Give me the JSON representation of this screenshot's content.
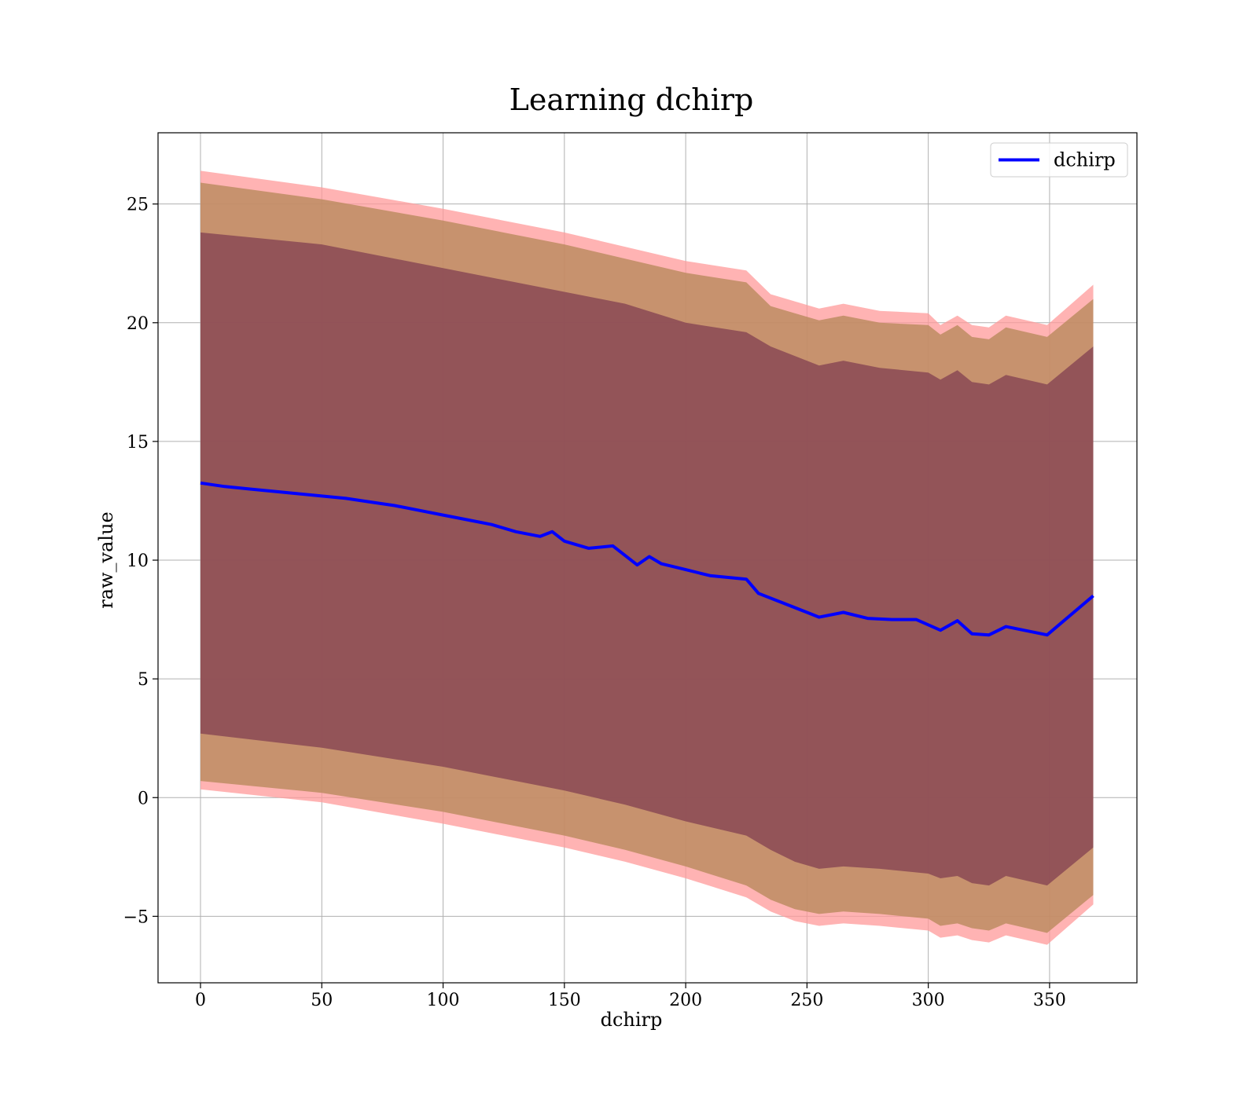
{
  "chart_data": {
    "type": "line",
    "title": "Learning dchirp",
    "xlabel": "dchirp",
    "ylabel": "raw_value",
    "xlim": [
      -17.5,
      386
    ],
    "ylim": [
      -7.8,
      28
    ],
    "x_ticks": [
      0,
      50,
      100,
      150,
      200,
      250,
      300,
      350
    ],
    "y_ticks": [
      -5,
      0,
      5,
      10,
      15,
      20,
      25
    ],
    "y_tick_labels": [
      "−5",
      "0",
      "5",
      "10",
      "15",
      "20",
      "25"
    ],
    "grid": true,
    "legend_position": "top-right",
    "colors": {
      "line": "#0000ff",
      "band_outer": "#ff9999",
      "band_middle": "#b98a5c",
      "band_inner": "#7f3b50"
    },
    "series": [
      {
        "name": "dchirp",
        "x": [
          0,
          10,
          20,
          30,
          40,
          50,
          60,
          70,
          80,
          90,
          100,
          110,
          120,
          130,
          140,
          145,
          150,
          160,
          170,
          180,
          185,
          190,
          200,
          210,
          220,
          225,
          230,
          240,
          250,
          255,
          265,
          275,
          285,
          295,
          305,
          312,
          318,
          325,
          332,
          349,
          368
        ],
        "values": [
          13.25,
          13.1,
          13.0,
          12.9,
          12.8,
          12.7,
          12.6,
          12.45,
          12.3,
          12.1,
          11.9,
          11.7,
          11.5,
          11.2,
          11.0,
          11.2,
          10.8,
          10.5,
          10.6,
          9.8,
          10.15,
          9.85,
          9.6,
          9.35,
          9.25,
          9.2,
          8.6,
          8.2,
          7.8,
          7.6,
          7.8,
          7.55,
          7.5,
          7.5,
          7.05,
          7.45,
          6.9,
          6.85,
          7.2,
          6.85,
          8.5
        ]
      }
    ],
    "bands": [
      {
        "role": "outer",
        "x": [
          0,
          50,
          100,
          150,
          175,
          200,
          225,
          235,
          245,
          255,
          265,
          280,
          300,
          305,
          312,
          318,
          325,
          332,
          349,
          368
        ],
        "upper": [
          26.4,
          25.7,
          24.8,
          23.8,
          23.2,
          22.6,
          22.2,
          21.2,
          20.9,
          20.6,
          20.8,
          20.5,
          20.4,
          19.9,
          20.3,
          19.9,
          19.8,
          20.3,
          19.9,
          21.6
        ],
        "lower": [
          0.35,
          -0.2,
          -1.1,
          -2.1,
          -2.7,
          -3.4,
          -4.2,
          -4.8,
          -5.2,
          -5.4,
          -5.3,
          -5.4,
          -5.6,
          -5.9,
          -5.8,
          -6.0,
          -6.1,
          -5.8,
          -6.2,
          -4.5
        ]
      },
      {
        "role": "middle",
        "x": [
          0,
          50,
          100,
          150,
          175,
          200,
          225,
          235,
          245,
          255,
          265,
          280,
          300,
          305,
          312,
          318,
          325,
          332,
          349,
          368
        ],
        "upper": [
          25.9,
          25.2,
          24.3,
          23.3,
          22.7,
          22.1,
          21.7,
          20.7,
          20.4,
          20.1,
          20.3,
          20.0,
          19.9,
          19.5,
          19.9,
          19.4,
          19.3,
          19.8,
          19.4,
          21.0
        ],
        "lower": [
          0.7,
          0.2,
          -0.6,
          -1.6,
          -2.2,
          -2.9,
          -3.7,
          -4.3,
          -4.7,
          -4.9,
          -4.8,
          -4.9,
          -5.1,
          -5.4,
          -5.3,
          -5.5,
          -5.6,
          -5.3,
          -5.7,
          -4.1
        ]
      },
      {
        "role": "inner",
        "x": [
          0,
          50,
          100,
          150,
          175,
          200,
          225,
          235,
          245,
          255,
          265,
          280,
          300,
          305,
          312,
          318,
          325,
          332,
          349,
          368
        ],
        "upper": [
          23.8,
          23.3,
          22.3,
          21.3,
          20.8,
          20.0,
          19.6,
          19.0,
          18.6,
          18.2,
          18.4,
          18.1,
          17.9,
          17.6,
          18.0,
          17.5,
          17.4,
          17.8,
          17.4,
          19.0
        ],
        "lower": [
          2.7,
          2.1,
          1.3,
          0.3,
          -0.3,
          -1.0,
          -1.6,
          -2.2,
          -2.7,
          -3.0,
          -2.9,
          -3.0,
          -3.2,
          -3.4,
          -3.3,
          -3.6,
          -3.7,
          -3.3,
          -3.7,
          -2.1
        ]
      }
    ]
  }
}
